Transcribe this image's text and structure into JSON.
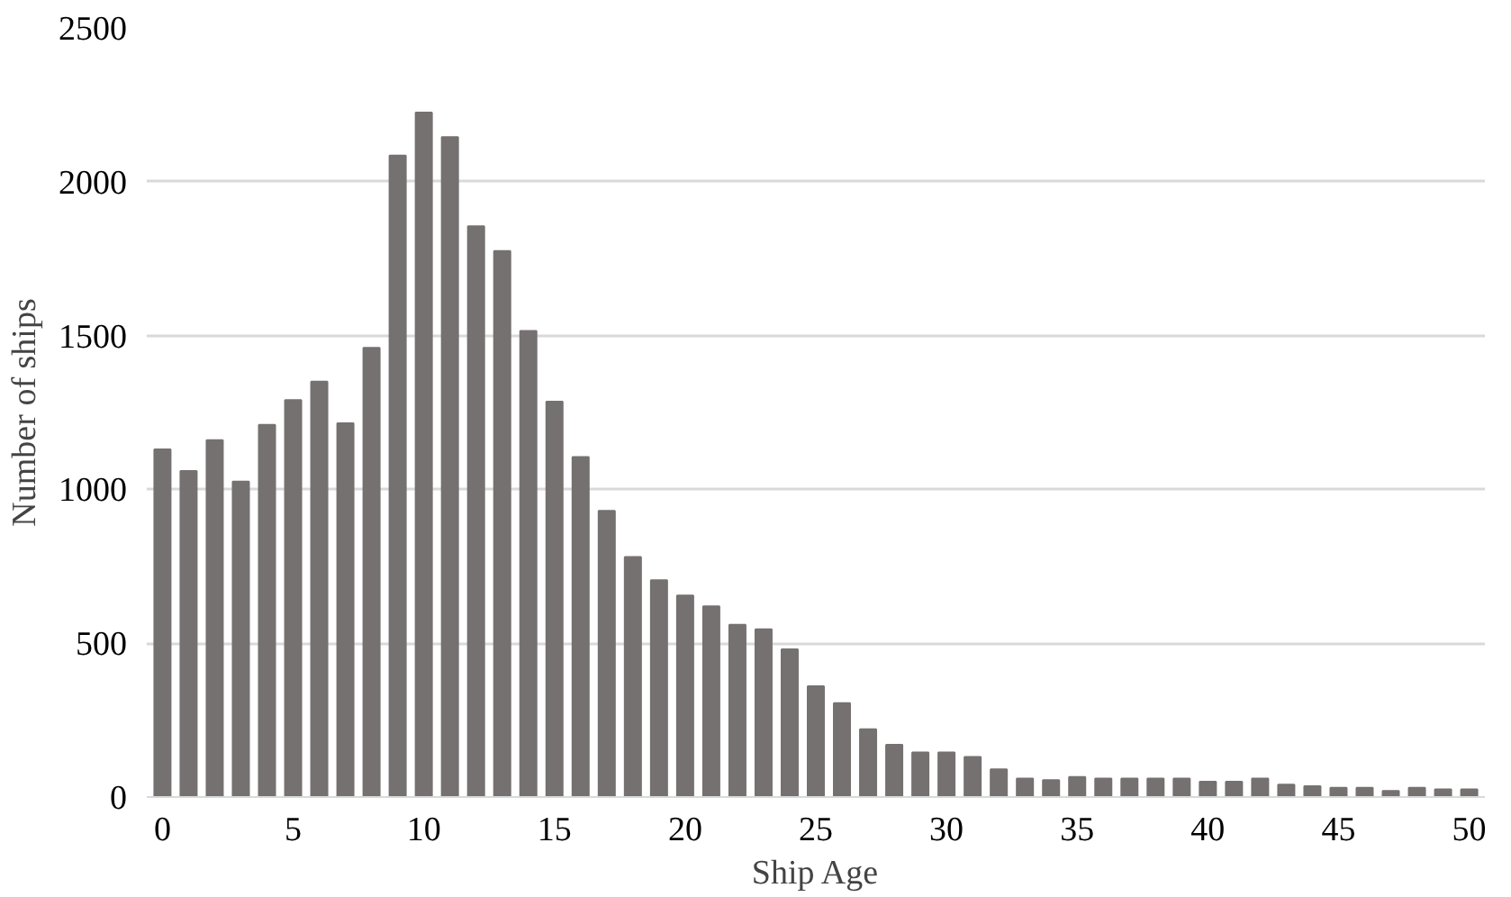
{
  "chart_data": {
    "type": "bar",
    "xlabel": "Ship Age",
    "ylabel": "Number of ships",
    "x": [
      0,
      1,
      2,
      3,
      4,
      5,
      6,
      7,
      8,
      9,
      10,
      11,
      12,
      13,
      14,
      15,
      16,
      17,
      18,
      19,
      20,
      21,
      22,
      23,
      24,
      25,
      26,
      27,
      28,
      29,
      30,
      31,
      32,
      33,
      34,
      35,
      36,
      37,
      38,
      39,
      40,
      41,
      42,
      43,
      44,
      45,
      46,
      47,
      48,
      49,
      50
    ],
    "values": [
      1130,
      1060,
      1160,
      1025,
      1210,
      1290,
      1350,
      1215,
      1460,
      2085,
      2225,
      2145,
      1855,
      1775,
      1515,
      1285,
      1105,
      930,
      780,
      705,
      655,
      620,
      560,
      545,
      480,
      360,
      305,
      220,
      170,
      145,
      145,
      130,
      90,
      60,
      55,
      65,
      60,
      60,
      60,
      60,
      50,
      50,
      60,
      40,
      35,
      30,
      30,
      20,
      30,
      25,
      25
    ],
    "color": "#767171",
    "xlim": [
      -0.6,
      50.6
    ],
    "xticks": [
      0,
      5,
      10,
      15,
      20,
      25,
      30,
      35,
      40,
      45,
      50
    ],
    "ylim": [
      0,
      2500
    ],
    "yticks": [
      0,
      500,
      1000,
      1500,
      2000,
      2500
    ],
    "grid": "y"
  }
}
